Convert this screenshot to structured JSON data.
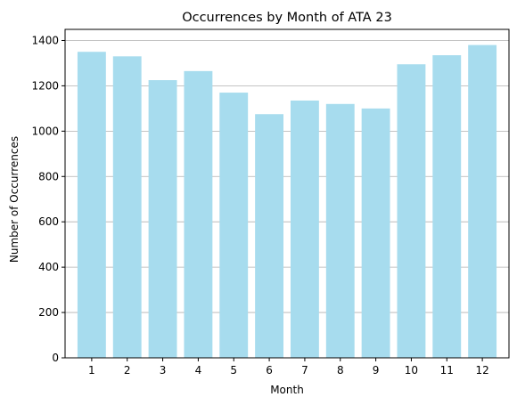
{
  "chart_data": {
    "type": "bar",
    "title": "Occurrences by Month of ATA 23",
    "xlabel": "Month",
    "ylabel": "Number of Occurrences",
    "categories": [
      1,
      2,
      3,
      4,
      5,
      6,
      7,
      8,
      9,
      10,
      11,
      12
    ],
    "values": [
      1350,
      1330,
      1225,
      1265,
      1170,
      1075,
      1135,
      1120,
      1100,
      1295,
      1335,
      1380
    ],
    "xticks": [
      "1",
      "2",
      "3",
      "4",
      "5",
      "6",
      "7",
      "8",
      "9",
      "10",
      "11",
      "12"
    ],
    "yticks": [
      "0",
      "200",
      "400",
      "600",
      "800",
      "1000",
      "1200",
      "1400"
    ],
    "ylim": [
      0,
      1449
    ],
    "grid": "y-axis",
    "legend": "none",
    "bar_color": "#a7dcee",
    "grid_color": "#b0b0b0",
    "axis_color": "#000000"
  }
}
